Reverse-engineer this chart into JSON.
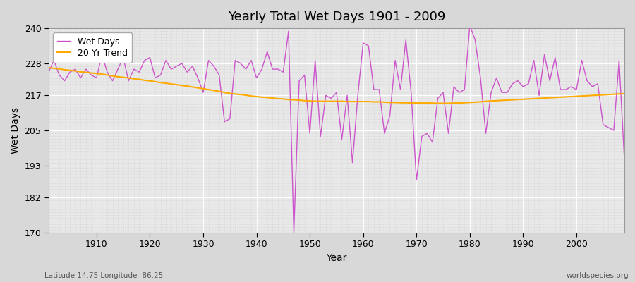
{
  "title": "Yearly Total Wet Days 1901 - 2009",
  "xlabel": "Year",
  "ylabel": "Wet Days",
  "footnote_left": "Latitude 14.75 Longitude -86.25",
  "footnote_right": "worldspecies.org",
  "line_color": "#cc55cc",
  "trend_color": "#ffaa00",
  "bg_color": "#d8d8d8",
  "plot_bg_color": "#e8e8e8",
  "ylim": [
    170,
    240
  ],
  "xlim": [
    1901,
    2009
  ],
  "yticks": [
    170,
    182,
    193,
    205,
    217,
    228,
    240
  ],
  "xticks": [
    1910,
    1920,
    1930,
    1940,
    1950,
    1960,
    1970,
    1980,
    1990,
    2000
  ],
  "years": [
    1901,
    1902,
    1903,
    1904,
    1905,
    1906,
    1907,
    1908,
    1909,
    1910,
    1911,
    1912,
    1913,
    1914,
    1915,
    1916,
    1917,
    1918,
    1919,
    1920,
    1921,
    1922,
    1923,
    1924,
    1925,
    1926,
    1927,
    1928,
    1929,
    1930,
    1931,
    1932,
    1933,
    1934,
    1935,
    1936,
    1937,
    1938,
    1939,
    1940,
    1941,
    1942,
    1943,
    1944,
    1945,
    1946,
    1947,
    1948,
    1949,
    1950,
    1951,
    1952,
    1953,
    1954,
    1955,
    1956,
    1957,
    1958,
    1959,
    1960,
    1961,
    1962,
    1963,
    1964,
    1965,
    1966,
    1967,
    1968,
    1969,
    1970,
    1971,
    1972,
    1973,
    1974,
    1975,
    1976,
    1977,
    1978,
    1979,
    1980,
    1981,
    1982,
    1983,
    1984,
    1985,
    1986,
    1987,
    1988,
    1989,
    1990,
    1991,
    1992,
    1993,
    1994,
    1995,
    1996,
    1997,
    1998,
    1999,
    2000,
    2001,
    2002,
    2003,
    2004,
    2005,
    2006,
    2007,
    2008,
    2009
  ],
  "wet_days": [
    225,
    229,
    224,
    222,
    225,
    226,
    223,
    226,
    224,
    223,
    231,
    225,
    222,
    226,
    230,
    222,
    226,
    225,
    229,
    230,
    223,
    224,
    229,
    226,
    227,
    228,
    225,
    227,
    223,
    218,
    229,
    227,
    224,
    208,
    209,
    229,
    228,
    226,
    229,
    223,
    226,
    232,
    226,
    226,
    225,
    239,
    170,
    222,
    224,
    204,
    229,
    203,
    217,
    216,
    218,
    202,
    217,
    194,
    217,
    235,
    234,
    219,
    219,
    204,
    210,
    229,
    219,
    236,
    218,
    188,
    203,
    204,
    201,
    216,
    218,
    204,
    220,
    218,
    219,
    241,
    236,
    223,
    204,
    218,
    223,
    218,
    218,
    221,
    222,
    220,
    221,
    229,
    217,
    231,
    222,
    230,
    219,
    219,
    220,
    219,
    229,
    222,
    220,
    221,
    207,
    206,
    205,
    229,
    195
  ],
  "trend": [
    226.5,
    226.3,
    226.1,
    225.8,
    225.6,
    225.4,
    225.1,
    224.9,
    224.7,
    224.5,
    224.3,
    224.0,
    223.7,
    223.4,
    223.2,
    223.0,
    222.7,
    222.5,
    222.2,
    222.0,
    221.7,
    221.4,
    221.2,
    220.9,
    220.7,
    220.4,
    220.2,
    219.9,
    219.6,
    219.3,
    219.0,
    218.7,
    218.4,
    218.0,
    217.7,
    217.5,
    217.3,
    217.1,
    216.8,
    216.6,
    216.4,
    216.3,
    216.1,
    215.9,
    215.8,
    215.6,
    215.5,
    215.4,
    215.2,
    215.1,
    215.0,
    215.0,
    215.0,
    215.0,
    215.0,
    215.0,
    214.9,
    214.9,
    214.9,
    214.9,
    214.9,
    214.8,
    214.8,
    214.7,
    214.6,
    214.6,
    214.5,
    214.5,
    214.4,
    214.4,
    214.4,
    214.4,
    214.4,
    214.3,
    214.3,
    214.3,
    214.4,
    214.4,
    214.5,
    214.6,
    214.7,
    214.8,
    215.0,
    215.1,
    215.2,
    215.3,
    215.4,
    215.5,
    215.6,
    215.7,
    215.8,
    215.9,
    216.0,
    216.1,
    216.2,
    216.3,
    216.4,
    216.5,
    216.6,
    216.7,
    216.8,
    216.9,
    217.0,
    217.1,
    217.2,
    217.3,
    217.4,
    217.5,
    217.6
  ]
}
